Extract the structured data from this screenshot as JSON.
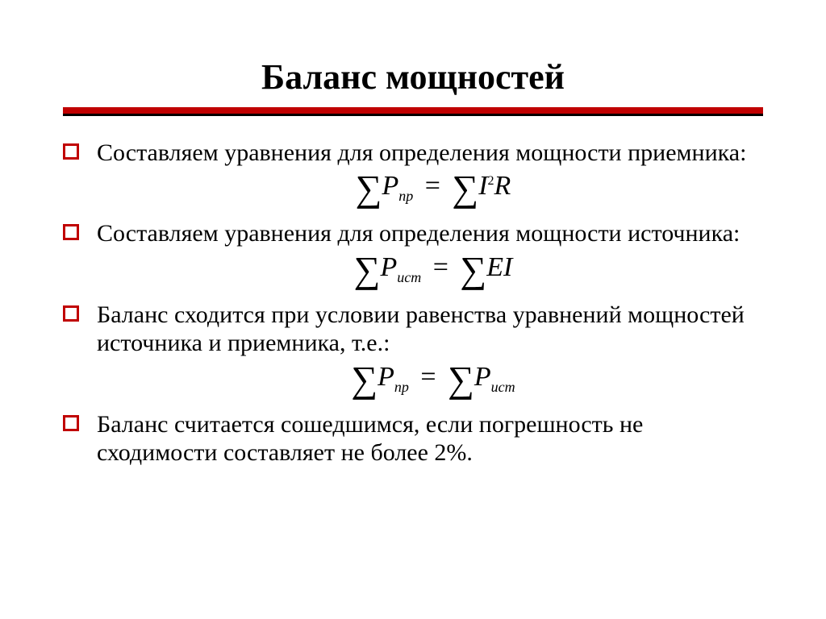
{
  "colors": {
    "accent": "#c00000",
    "text": "#000000",
    "background": "#ffffff"
  },
  "title": "Баланс мощностей",
  "items": [
    {
      "text": "Составляем уравнения для определения мощности приемника:",
      "formula": {
        "lhs_sym": "P",
        "lhs_sub": "пр",
        "rhs_type": "i2r",
        "rhs_I": "I",
        "rhs_exp": "2",
        "rhs_R": "R"
      }
    },
    {
      "text": "Составляем уравнения для определения мощности источника:",
      "formula": {
        "lhs_sym": "P",
        "lhs_sub": "ист",
        "rhs_type": "ei",
        "rhs_E": "E",
        "rhs_I": "I"
      }
    },
    {
      "text": "Баланс сходится при условии равенства уравнений мощностей источника и приемника, т.е.:",
      "formula": {
        "lhs_sym": "P",
        "lhs_sub": "пр",
        "rhs_type": "psub",
        "rhs_sym": "P",
        "rhs_sub": "ист"
      }
    },
    {
      "text": "Баланс считается сошедшимся, если погрешность не сходимости составляет не более 2%."
    }
  ],
  "sigma": "∑",
  "equals": "="
}
